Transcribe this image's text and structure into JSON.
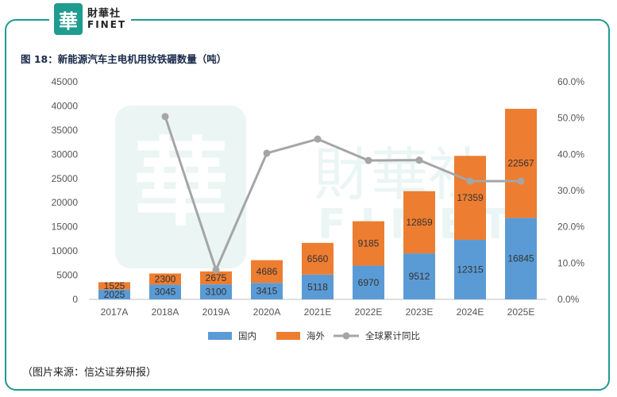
{
  "logo": {
    "mark": "華",
    "cn": "財華社",
    "en": "FINET"
  },
  "watermark": {
    "mark": "華",
    "cn": "財華社",
    "en": "FINET"
  },
  "figure_title": "图 18：新能源汽车主电机用钕铁硼数量（吨）",
  "source": "（图片来源：信达证券研报）",
  "chart_data": {
    "type": "bar",
    "stacked": true,
    "categories": [
      "2017A",
      "2018A",
      "2019A",
      "2020A",
      "2021E",
      "2022E",
      "2023E",
      "2024E",
      "2025E"
    ],
    "series": [
      {
        "name": "国内",
        "type": "bar",
        "axis": "left",
        "color": "#5b9bd5",
        "values": [
          2025,
          3045,
          3100,
          3415,
          5118,
          6970,
          9512,
          12315,
          16845
        ]
      },
      {
        "name": "海外",
        "type": "bar",
        "axis": "left",
        "color": "#ed7d31",
        "values": [
          1525,
          2300,
          2675,
          4686,
          6560,
          9185,
          12859,
          17359,
          22567
        ]
      },
      {
        "name": "全球累计同比",
        "type": "line",
        "axis": "right",
        "color": "#a5a5a5",
        "values": [
          null,
          50.4,
          8.1,
          40.3,
          44.2,
          38.3,
          38.4,
          32.6,
          32.6
        ]
      }
    ],
    "ylim": [
      0,
      45000
    ],
    "yticks": [
      "0",
      "5000",
      "10000",
      "15000",
      "20000",
      "25000",
      "30000",
      "35000",
      "40000",
      "45000"
    ],
    "y2lim": [
      0,
      60
    ],
    "y2ticks": [
      "0.0%",
      "10.0%",
      "20.0%",
      "30.0%",
      "40.0%",
      "50.0%",
      "60.0%"
    ],
    "legend_position": "bottom",
    "grid": false
  }
}
